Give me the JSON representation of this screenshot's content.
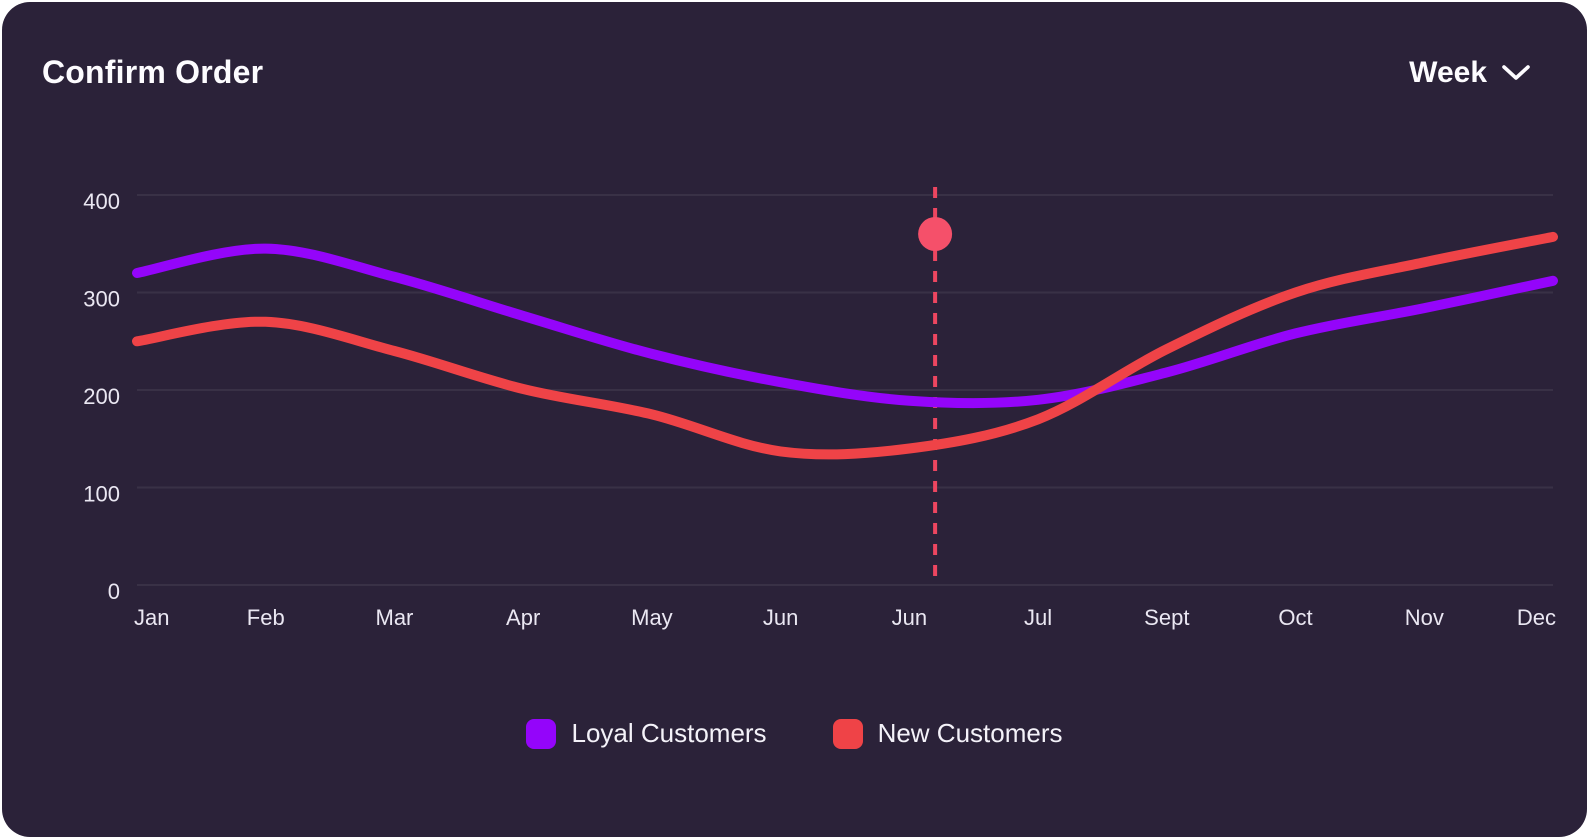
{
  "card": {
    "title": "Confirm Order",
    "period_selector": {
      "label": "Week"
    }
  },
  "chart_data": {
    "type": "line",
    "categories": [
      "Jan",
      "Feb",
      "Mar",
      "Apr",
      "May",
      "Jun",
      "Jun",
      "Jul",
      "Sept",
      "Oct",
      "Nov",
      "Dec"
    ],
    "series": [
      {
        "name": "Loyal Customers",
        "color": "#9405fa",
        "values": [
          320,
          345,
          316,
          276,
          237,
          208,
          189,
          190,
          218,
          258,
          284,
          312
        ]
      },
      {
        "name": "New Customers",
        "color": "#ef4347",
        "values": [
          250,
          270,
          240,
          201,
          175,
          137,
          140,
          170,
          242,
          300,
          331,
          357
        ]
      }
    ],
    "title": "",
    "xlabel": "",
    "ylabel": "",
    "y_ticks": [
      0,
      100,
      200,
      300,
      400
    ],
    "ylim": [
      0,
      410
    ],
    "grid": "horizontal",
    "gridline_color": "rgba(255,255,255,0.07)",
    "legend_position": "bottom",
    "marker": {
      "x_index": 6.2,
      "value": 360,
      "dot_color": "#f5506a",
      "dashed_line_color": "#ed4660"
    }
  }
}
